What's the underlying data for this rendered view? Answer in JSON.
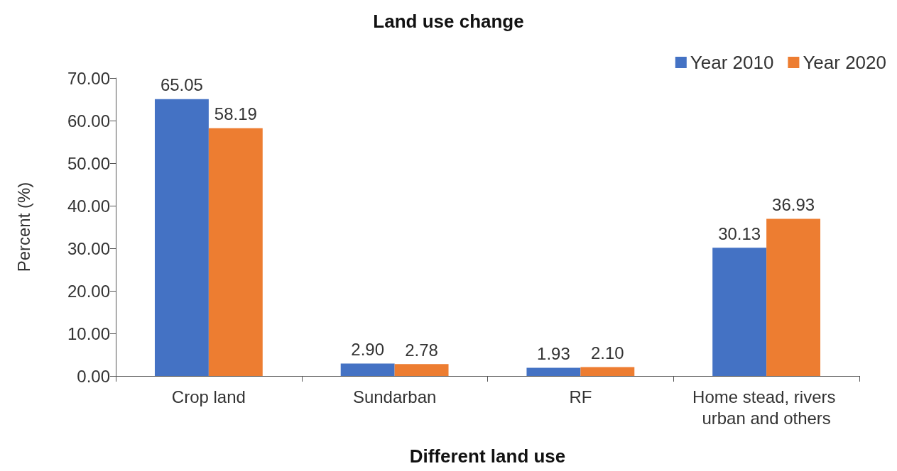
{
  "chart_data": {
    "type": "bar",
    "title": "Land use change",
    "xlabel": "Different land use",
    "ylabel": "Percent (%)",
    "categories": [
      "Crop land",
      "Sundarban",
      "RF",
      "Home stead, rivers urban and others"
    ],
    "series": [
      {
        "name": "Year 2010",
        "color": "#4472c4",
        "values": [
          65.05,
          2.9,
          1.93,
          30.13
        ],
        "value_labels": [
          "65.05",
          "2.90",
          "1.93",
          "30.13"
        ]
      },
      {
        "name": "Year 2020",
        "color": "#ed7d31",
        "values": [
          58.19,
          2.78,
          2.1,
          36.93
        ],
        "value_labels": [
          "58.19",
          "2.78",
          "2.10",
          "36.93"
        ]
      }
    ],
    "ylim": [
      0,
      70
    ],
    "yticks": [
      {
        "value": 0,
        "label": "0.00"
      },
      {
        "value": 10,
        "label": "10.00"
      },
      {
        "value": 20,
        "label": "20.00"
      },
      {
        "value": 30,
        "label": "30.00"
      },
      {
        "value": 40,
        "label": "40.00"
      },
      {
        "value": 50,
        "label": "50.00"
      },
      {
        "value": 60,
        "label": "60.00"
      },
      {
        "value": 70,
        "label": "70.00"
      }
    ],
    "grid": false,
    "legend": "top right"
  }
}
